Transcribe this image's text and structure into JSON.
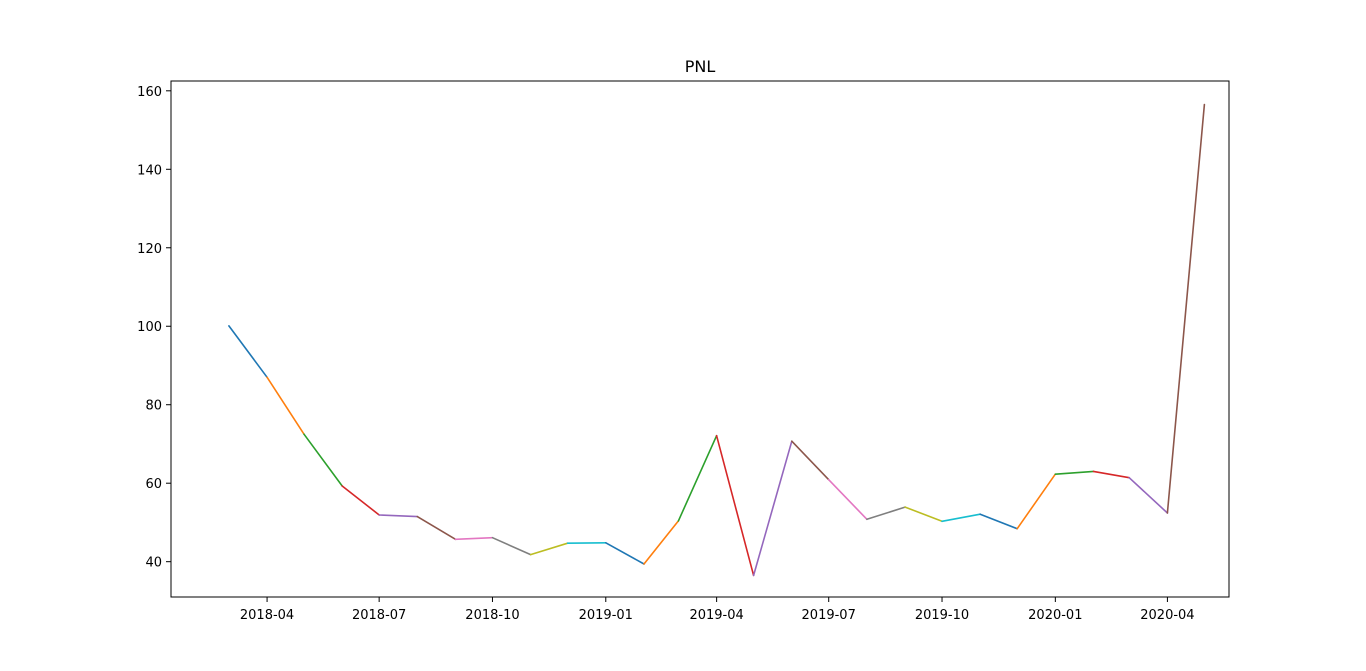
{
  "chart_data": {
    "type": "line",
    "title": "PNL",
    "xlabel": "",
    "ylabel": "",
    "x_axis": {
      "type": "date",
      "range": [
        "2018-01-13",
        "2020-05-21"
      ],
      "ticks": [
        "2018-04",
        "2018-07",
        "2018-10",
        "2019-01",
        "2019-04",
        "2019-07",
        "2019-10",
        "2020-01",
        "2020-04"
      ]
    },
    "y_axis": {
      "range": [
        31,
        162.5
      ],
      "ticks": [
        40,
        60,
        80,
        100,
        120,
        140,
        160
      ]
    },
    "grid": false,
    "legend": "none",
    "x": [
      "2018-03-01",
      "2018-04-01",
      "2018-05-01",
      "2018-06-01",
      "2018-07-01",
      "2018-08-01",
      "2018-09-01",
      "2018-10-01",
      "2018-11-01",
      "2018-12-01",
      "2019-01-01",
      "2019-02-01",
      "2019-03-01",
      "2019-04-01",
      "2019-05-01",
      "2019-06-01",
      "2019-07-01",
      "2019-08-01",
      "2019-09-01",
      "2019-10-01",
      "2019-11-01",
      "2019-12-01",
      "2020-01-01",
      "2020-02-01",
      "2020-03-01",
      "2020-04-01",
      "2020-05-01"
    ],
    "values": [
      100.1,
      87.0,
      72.5,
      59.3,
      51.9,
      51.5,
      45.7,
      46.1,
      41.8,
      44.7,
      44.8,
      39.4,
      50.4,
      72.1,
      36.5,
      70.7,
      60.9,
      50.8,
      53.9,
      50.3,
      52.1,
      48.4,
      62.3,
      63.0,
      61.4,
      52.4,
      156.5
    ],
    "segment_colors": [
      "#1f77b4",
      "#ff7f0e",
      "#2ca02c",
      "#d62728",
      "#9467bd",
      "#8c564b",
      "#e377c2",
      "#7f7f7f",
      "#bcbd22",
      "#17becf"
    ]
  }
}
